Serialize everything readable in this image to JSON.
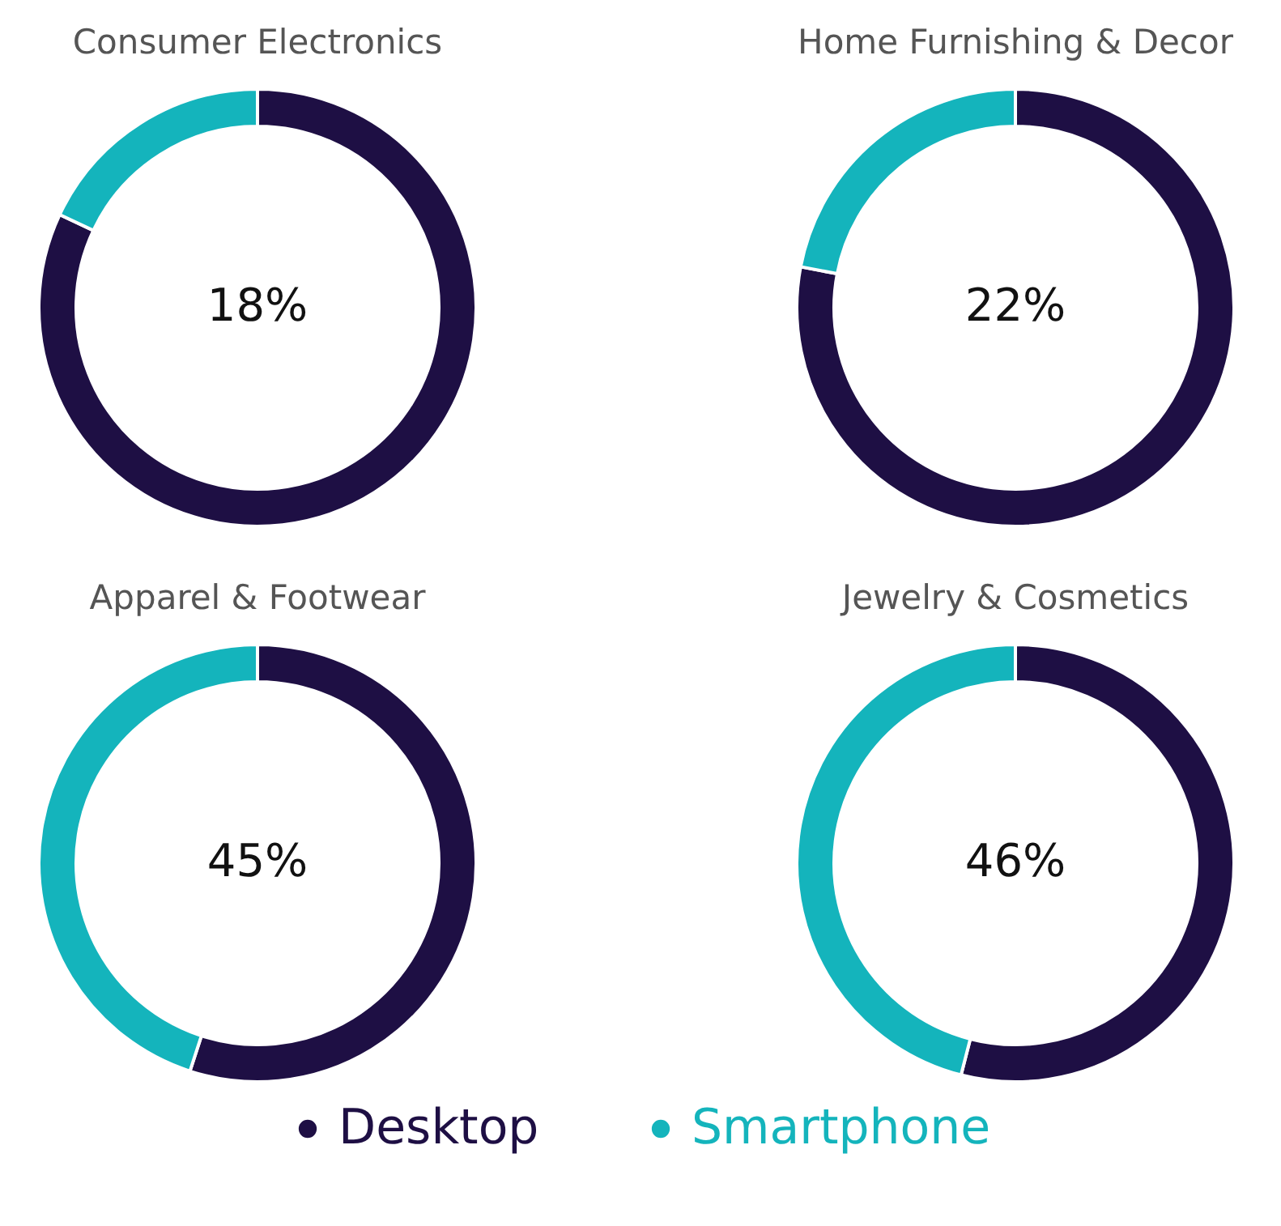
{
  "chart_data": [
    {
      "type": "donut",
      "title": "Consumer Electronics",
      "categories": [
        "Desktop",
        "Smartphone"
      ],
      "values": [
        82,
        18
      ],
      "colors": [
        "#1e0f44",
        "#14b4bc"
      ],
      "annotations": [
        "18%"
      ],
      "legend": "bottom"
    },
    {
      "type": "donut",
      "title": "Home Furnishing & Decor",
      "categories": [
        null,
        null
      ],
      "values": [
        78,
        22
      ],
      "colors": [
        "#1e0f44",
        "#14b4bc"
      ],
      "annotations": [
        "22%"
      ]
    },
    {
      "type": "donut",
      "title": "Apparel & Footwear",
      "categories": [
        null,
        null
      ],
      "values": [
        55,
        45
      ],
      "colors": [
        "#1e0f44",
        "#14b4bc"
      ],
      "annotations": [
        "45%"
      ]
    },
    {
      "type": "donut",
      "title": "Jewelry & Cosmetics",
      "categories": [
        null,
        null
      ],
      "values": [
        54,
        46
      ],
      "colors": [
        "#1e0f44",
        "#14b4bc"
      ],
      "annotations": [
        "46%"
      ]
    }
  ]
}
